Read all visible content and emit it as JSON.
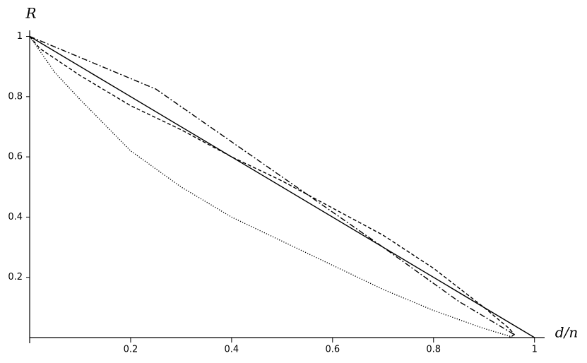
{
  "chart_data": {
    "type": "line",
    "x_label": "d/n",
    "y_label": "R",
    "xlim": [
      0,
      1.02
    ],
    "ylim": [
      0,
      1.02
    ],
    "xticks": [
      0.2,
      0.4,
      0.6,
      0.8,
      1
    ],
    "yticks": [
      0.2,
      0.4,
      0.6,
      0.8,
      1
    ],
    "series": [
      {
        "color": "#000000",
        "dash": "solid",
        "x": [
          0,
          1
        ],
        "values": [
          1,
          0
        ]
      },
      {
        "color": "#000000",
        "dash": "dashed",
        "x": [
          0,
          0.02,
          0.1,
          0.2,
          0.3,
          0.4,
          0.5,
          0.6,
          0.7,
          0.8,
          0.9,
          0.95,
          0.96,
          0.95
        ],
        "values": [
          1,
          0.96,
          0.87,
          0.77,
          0.69,
          0.6,
          0.52,
          0.43,
          0.34,
          0.23,
          0.1,
          0.03,
          0.01,
          0
        ]
      },
      {
        "color": "#000000",
        "dash": "dashdot",
        "x": [
          0,
          0.1,
          0.25,
          0.4,
          0.55,
          0.7,
          0.85,
          0.93,
          0.96,
          0.95
        ],
        "values": [
          1,
          0.93,
          0.825,
          0.65,
          0.475,
          0.3,
          0.12,
          0.04,
          0.01,
          0
        ]
      },
      {
        "color": "#000000",
        "dash": "dotted",
        "x": [
          0,
          0.05,
          0.1,
          0.2,
          0.3,
          0.4,
          0.5,
          0.6,
          0.7,
          0.8,
          0.9,
          0.96
        ],
        "values": [
          1,
          0.88,
          0.79,
          0.62,
          0.5,
          0.4,
          0.32,
          0.24,
          0.16,
          0.09,
          0.03,
          0
        ]
      }
    ]
  }
}
